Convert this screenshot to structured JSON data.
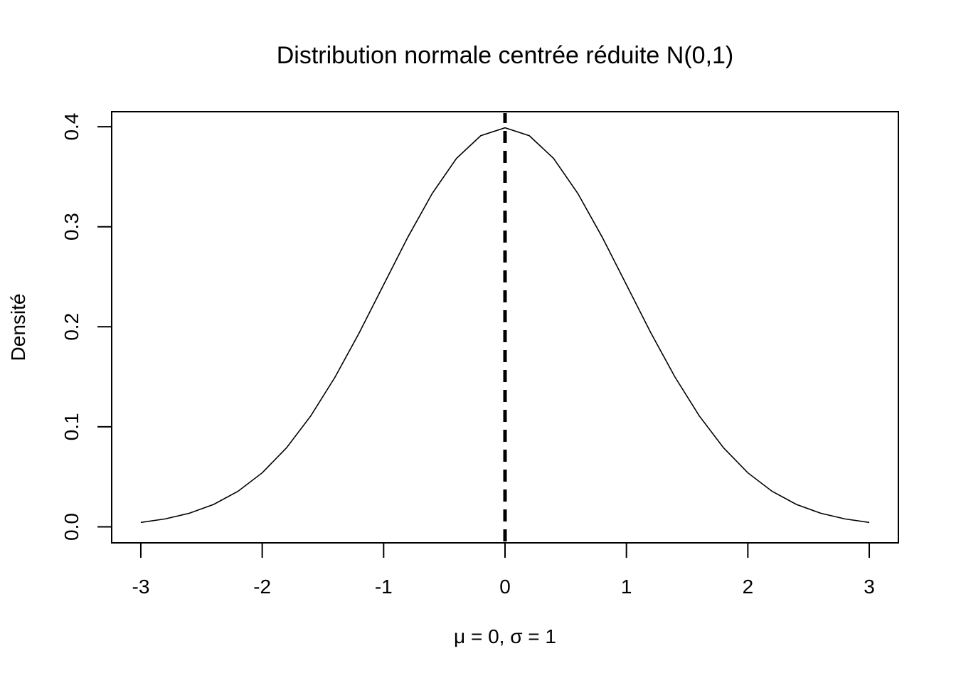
{
  "chart_data": {
    "type": "line",
    "title": "Distribution normale centrée réduite N(0,1)",
    "xlabel": "μ = 0, σ = 1",
    "ylabel": "Densité",
    "xlim": [
      -3.24,
      3.24
    ],
    "ylim": [
      -0.016,
      0.415
    ],
    "x_ticks": [
      -3,
      -2,
      -1,
      0,
      1,
      2,
      3
    ],
    "x_tick_labels": [
      "-3",
      "-2",
      "-1",
      "0",
      "1",
      "2",
      "3"
    ],
    "y_ticks": [
      0.0,
      0.1,
      0.2,
      0.3,
      0.4
    ],
    "y_tick_labels": [
      "0.0",
      "0.1",
      "0.2",
      "0.3",
      "0.4"
    ],
    "series": [
      {
        "x": [
          -3.0,
          -2.8,
          -2.6,
          -2.4,
          -2.2,
          -2.0,
          -1.8,
          -1.6,
          -1.4,
          -1.2,
          -1.0,
          -0.8,
          -0.6,
          -0.4,
          -0.2,
          0.0,
          0.2,
          0.4,
          0.6,
          0.8,
          1.0,
          1.2,
          1.4,
          1.6,
          1.8,
          2.0,
          2.2,
          2.4,
          2.6,
          2.8,
          3.0
        ],
        "y": [
          0.0044,
          0.0079,
          0.0136,
          0.0224,
          0.0355,
          0.054,
          0.079,
          0.1109,
          0.1497,
          0.1942,
          0.242,
          0.2897,
          0.3332,
          0.3683,
          0.391,
          0.3989,
          0.391,
          0.3683,
          0.3332,
          0.2897,
          0.242,
          0.1942,
          0.1497,
          0.1109,
          0.079,
          0.054,
          0.0355,
          0.0224,
          0.0136,
          0.0079,
          0.0044
        ]
      }
    ],
    "vertical_line": {
      "x": 0,
      "style": "dashed"
    },
    "grid": false,
    "legend": "none"
  }
}
